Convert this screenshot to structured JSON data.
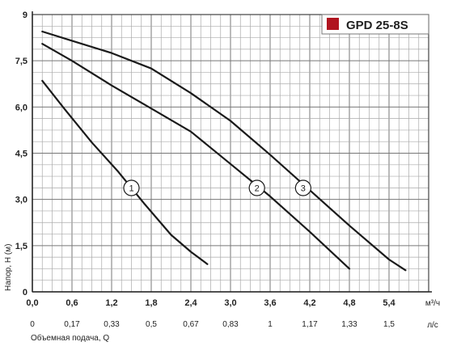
{
  "chart_data": {
    "type": "line",
    "legend": {
      "title": "GPD 25-8S",
      "color": "#b0141f"
    },
    "xlabel": "Объемная подача, Q",
    "ylabel": "Напор, Н (м)",
    "x_unit": "м³/ч",
    "x2_unit": "л/с",
    "xlim": [
      0,
      6.0
    ],
    "ylim": [
      0,
      9
    ],
    "x_ticks": [
      "0,0",
      "0,6",
      "1,2",
      "1,8",
      "2,4",
      "3,0",
      "3,6",
      "4,2",
      "4,8",
      "5,4"
    ],
    "x_tick_values": [
      0,
      0.6,
      1.2,
      1.8,
      2.4,
      3.0,
      3.6,
      4.2,
      4.8,
      5.4
    ],
    "x2_ticks": [
      "0",
      "0,17",
      "0,33",
      "0,5",
      "0,67",
      "0,83",
      "1",
      "1,17",
      "1,33",
      "1,5"
    ],
    "x2_tick_values": [
      0,
      0.6,
      1.2,
      1.8,
      2.4,
      3.0,
      3.6,
      4.2,
      4.8,
      5.4
    ],
    "y_ticks": [
      "0",
      "1,5",
      "3,0",
      "4,5",
      "6,0",
      "7,5",
      "9"
    ],
    "y_tick_values": [
      0,
      1.5,
      3.0,
      4.5,
      6.0,
      7.5,
      9
    ],
    "grid": true,
    "series": [
      {
        "name": "1",
        "label_at": [
          1.5,
          3.45
        ],
        "x": [
          0.15,
          0.5,
          0.9,
          1.3,
          1.7,
          2.1,
          2.4,
          2.65
        ],
        "y": [
          6.85,
          5.9,
          4.85,
          3.9,
          2.85,
          1.85,
          1.3,
          0.9
        ]
      },
      {
        "name": "2",
        "label_at": [
          3.4,
          3.45
        ],
        "x": [
          0.15,
          0.6,
          1.2,
          1.8,
          2.4,
          3.0,
          3.6,
          4.2,
          4.8
        ],
        "y": [
          8.05,
          7.5,
          6.7,
          5.95,
          5.2,
          4.15,
          3.1,
          1.95,
          0.75
        ]
      },
      {
        "name": "3",
        "label_at": [
          4.1,
          3.45
        ],
        "x": [
          0.15,
          0.6,
          1.2,
          1.8,
          2.4,
          3.0,
          3.6,
          4.2,
          4.8,
          5.4,
          5.65
        ],
        "y": [
          8.45,
          8.15,
          7.75,
          7.25,
          6.45,
          5.55,
          4.45,
          3.3,
          2.15,
          1.05,
          0.7
        ]
      }
    ]
  }
}
